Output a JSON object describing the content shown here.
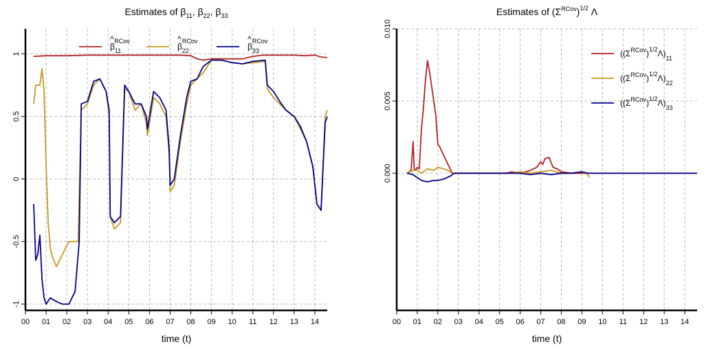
{
  "chart_data": [
    {
      "type": "line",
      "title": "Estimates of β11, β22, β33",
      "title_parts": {
        "prefix": "Estimates of ",
        "sym": "β",
        "subs": [
          "11",
          "22",
          "33"
        ]
      },
      "xlabel": "time (t)",
      "ylabel": "",
      "xlim": [
        0,
        14.6
      ],
      "ylim": [
        -1.05,
        1.2
      ],
      "x_ticks": [
        "00",
        "01",
        "02",
        "03",
        "04",
        "05",
        "06",
        "07",
        "08",
        "09",
        "10",
        "11",
        "12",
        "13",
        "14"
      ],
      "y_ticks": [
        -1,
        -0.5,
        0,
        0.5,
        1
      ],
      "y_tick_labels": [
        "-1",
        "-0.5",
        "0",
        "0.5",
        "1"
      ],
      "grid": true,
      "legend_position": "top",
      "legend_texts": {
        "hat_symbol": "β",
        "superscript": "RCov"
      },
      "series": [
        {
          "name": "β11 RCov",
          "sub": "11",
          "color": "#b22222",
          "x": [
            0.4,
            1.0,
            2.0,
            3.0,
            4.0,
            5.0,
            6.0,
            7.0,
            7.5,
            8.0,
            8.3,
            8.6,
            9.0,
            9.5,
            10.0,
            10.5,
            11.0,
            11.5,
            12.0,
            12.5,
            13.0,
            13.5,
            14.0,
            14.3,
            14.6
          ],
          "y": [
            0.98,
            0.985,
            0.985,
            0.99,
            0.99,
            0.99,
            0.99,
            0.99,
            0.99,
            0.985,
            0.96,
            0.95,
            0.96,
            0.96,
            0.96,
            0.96,
            0.98,
            0.99,
            0.99,
            0.99,
            0.99,
            0.985,
            0.99,
            0.975,
            0.97
          ]
        },
        {
          "name": "β22 RCov",
          "sub": "22",
          "color": "#c8961e",
          "x": [
            0.4,
            0.5,
            0.7,
            0.8,
            0.9,
            1.0,
            1.1,
            1.2,
            1.3,
            1.5,
            1.8,
            2.1,
            2.4,
            2.55,
            2.7,
            3.0,
            3.3,
            3.6,
            3.9,
            4.05,
            4.1,
            4.3,
            4.6,
            4.8,
            5.0,
            5.3,
            5.6,
            5.85,
            5.9,
            6.2,
            6.5,
            6.8,
            6.95,
            7.0,
            7.2,
            7.5,
            7.8,
            8.0,
            8.3,
            8.6,
            9.0,
            9.5,
            10.0,
            10.5,
            11.0,
            11.6,
            11.7,
            12.0,
            12.3,
            12.6,
            13.0,
            13.3,
            13.6,
            13.9,
            14.1,
            14.3,
            14.5,
            14.6
          ],
          "y": [
            0.6,
            0.75,
            0.75,
            0.88,
            0.7,
            0.1,
            -0.35,
            -0.55,
            -0.62,
            -0.7,
            -0.6,
            -0.5,
            -0.5,
            -0.5,
            0.55,
            0.6,
            0.75,
            0.8,
            0.7,
            0.5,
            -0.3,
            -0.4,
            -0.35,
            0.72,
            0.7,
            0.55,
            0.6,
            0.45,
            0.35,
            0.65,
            0.6,
            0.5,
            0.2,
            -0.1,
            -0.05,
            0.3,
            0.6,
            0.75,
            0.8,
            0.85,
            0.95,
            0.95,
            0.93,
            0.92,
            0.93,
            0.94,
            0.72,
            0.65,
            0.6,
            0.55,
            0.5,
            0.4,
            0.3,
            0.1,
            -0.2,
            -0.25,
            0.5,
            0.55
          ]
        },
        {
          "name": "β33 RCov",
          "sub": "33",
          "color": "#00008b",
          "x": [
            0.4,
            0.5,
            0.6,
            0.7,
            0.8,
            0.9,
            1.0,
            1.2,
            1.5,
            1.8,
            2.1,
            2.4,
            2.6,
            2.7,
            3.0,
            3.3,
            3.6,
            3.9,
            4.05,
            4.1,
            4.3,
            4.6,
            4.8,
            5.0,
            5.3,
            5.6,
            5.85,
            5.9,
            6.2,
            6.5,
            6.8,
            6.95,
            7.0,
            7.2,
            7.5,
            7.8,
            8.0,
            8.3,
            8.6,
            9.0,
            9.5,
            10.0,
            10.5,
            11.0,
            11.6,
            11.7,
            12.0,
            12.3,
            12.6,
            13.0,
            13.3,
            13.6,
            13.9,
            14.1,
            14.3,
            14.5,
            14.6
          ],
          "y": [
            -0.2,
            -0.65,
            -0.6,
            -0.45,
            -0.8,
            -0.95,
            -1.0,
            -0.95,
            -0.98,
            -1.0,
            -1.0,
            -0.9,
            -0.5,
            0.6,
            0.62,
            0.78,
            0.8,
            0.7,
            0.55,
            -0.3,
            -0.35,
            -0.3,
            0.75,
            0.7,
            0.6,
            0.6,
            0.5,
            0.4,
            0.7,
            0.65,
            0.55,
            0.25,
            -0.05,
            0.0,
            0.35,
            0.65,
            0.78,
            0.8,
            0.9,
            0.95,
            0.95,
            0.93,
            0.92,
            0.94,
            0.95,
            0.75,
            0.7,
            0.62,
            0.55,
            0.5,
            0.42,
            0.3,
            0.1,
            -0.2,
            -0.25,
            0.45,
            0.5
          ]
        }
      ]
    },
    {
      "type": "line",
      "title": "Estimates of (Σ̂RCov)1/2 Λ̂",
      "title_parts": {
        "prefix": "Estimates of ",
        "sigma": "Σ",
        "superscript": "RCov",
        "exponent": "1/2",
        "lambda": "Λ"
      },
      "xlabel": "time (t)",
      "ylabel": "",
      "xlim": [
        0,
        14.6
      ],
      "ylim": [
        -0.0095,
        0.01
      ],
      "x_ticks": [
        "00",
        "01",
        "02",
        "03",
        "04",
        "05",
        "06",
        "07",
        "08",
        "09",
        "10",
        "11",
        "12",
        "13",
        "14"
      ],
      "y_ticks": [
        0,
        0.005,
        0.01
      ],
      "y_tick_labels": [
        "0.000",
        "0.005",
        "0.010"
      ],
      "grid": true,
      "legend_position": "top-right",
      "legend_texts": {
        "sigma": "Σ",
        "superscript": "RCov",
        "exponent": "1/2",
        "lambda": "Λ"
      },
      "series": [
        {
          "name": "(Σ̂RCov)1/2 Λ̂ 11",
          "sub": "11",
          "color": "#b22222",
          "x": [
            0.5,
            0.7,
            0.8,
            0.85,
            0.9,
            1.0,
            1.1,
            1.2,
            1.3,
            1.4,
            1.5,
            1.6,
            1.7,
            1.8,
            1.9,
            2.0,
            2.1,
            2.2,
            2.3,
            2.4,
            2.5,
            2.6,
            2.7,
            5.3,
            5.6,
            6.0,
            6.5,
            6.8,
            7.0,
            7.1,
            7.2,
            7.4,
            7.6,
            7.8,
            8.0,
            8.5,
            9.0,
            9.3
          ],
          "y": [
            0.0,
            0.0002,
            0.0022,
            0.0003,
            0.0002,
            0.0004,
            0.0003,
            0.003,
            0.0045,
            0.0065,
            0.0078,
            0.007,
            0.006,
            0.005,
            0.004,
            0.002,
            0.0018,
            0.0015,
            0.0012,
            0.0009,
            0.0006,
            0.0003,
            0.0,
            0.0,
            0.0001,
            0.0,
            0.0002,
            0.0004,
            0.0008,
            0.0006,
            0.001,
            0.0011,
            0.0004,
            0.0003,
            0.0001,
            0.0,
            0.0,
            0.0
          ]
        },
        {
          "name": "(Σ̂RCov)1/2 Λ̂ 22",
          "sub": "22",
          "color": "#c8961e",
          "x": [
            0.5,
            0.8,
            1.0,
            1.2,
            1.5,
            1.8,
            2.0,
            2.3,
            2.6,
            2.8,
            5.5,
            6.0,
            6.5,
            7.0,
            7.5,
            8.0,
            8.5,
            9.0,
            9.3,
            9.35
          ],
          "y": [
            0.0,
            0.0002,
            0.0002,
            0.0,
            0.0003,
            0.0002,
            0.0004,
            0.0003,
            0.0001,
            0.0,
            0.0,
            0.0001,
            0.0,
            0.0001,
            0.0002,
            0.0,
            0.0,
            0.0001,
            -0.0001,
            -0.0003
          ]
        },
        {
          "name": "(Σ̂RCov)1/2 Λ̂ 33",
          "sub": "33",
          "color": "#00008b",
          "x": [
            0.5,
            0.8,
            1.0,
            1.2,
            1.5,
            1.8,
            2.0,
            2.3,
            2.6,
            2.8,
            5.5,
            6.0,
            6.5,
            7.0,
            7.5,
            8.0,
            8.5,
            9.0,
            9.3,
            14.6
          ],
          "y": [
            0.0,
            -0.0001,
            -0.0003,
            -0.0005,
            -0.0006,
            -0.0005,
            -0.0005,
            -0.0004,
            -0.0002,
            0.0,
            0.0,
            0.0,
            -0.0001,
            0.0,
            -0.0001,
            0.0,
            0.0,
            0.0001,
            0.0,
            0.0
          ]
        }
      ]
    }
  ]
}
